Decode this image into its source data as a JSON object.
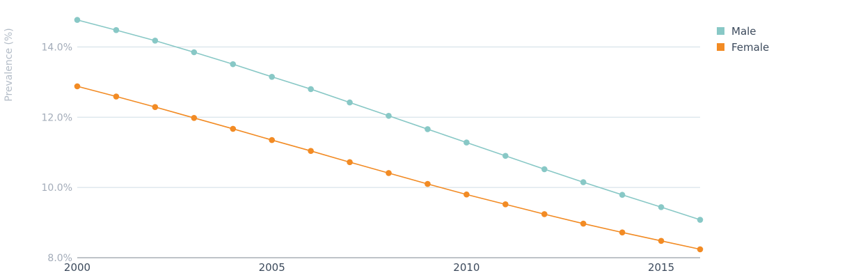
{
  "chart_data": {
    "type": "line",
    "xlabel": "",
    "ylabel": "Prevalence (%)",
    "xlim": [
      2000,
      2016
    ],
    "ylim": [
      8.0,
      15.0
    ],
    "x_ticks": [
      2000,
      2005,
      2010,
      2015
    ],
    "x_tick_labels": [
      "2000",
      "2005",
      "2010",
      "2015"
    ],
    "y_ticks": [
      8,
      10,
      12,
      14
    ],
    "y_tick_labels": [
      "8.0%",
      "10.0%",
      "12.0%",
      "14.0%"
    ],
    "grid": true,
    "legend_position": "top-right",
    "x": [
      2000,
      2001,
      2002,
      2003,
      2004,
      2005,
      2006,
      2007,
      2008,
      2009,
      2010,
      2011,
      2012,
      2013,
      2014,
      2015,
      2016
    ],
    "series": [
      {
        "name": "Male",
        "color": "#88c8c6",
        "values": [
          14.77,
          14.48,
          14.18,
          13.85,
          13.51,
          13.15,
          12.8,
          12.42,
          12.04,
          11.66,
          11.28,
          10.9,
          10.52,
          10.15,
          9.79,
          9.44,
          9.08
        ]
      },
      {
        "name": "Female",
        "color": "#f28b24",
        "values": [
          12.88,
          12.59,
          12.29,
          11.98,
          11.67,
          11.35,
          11.04,
          10.72,
          10.41,
          10.1,
          9.8,
          9.52,
          9.24,
          8.97,
          8.72,
          8.48,
          8.24
        ]
      }
    ]
  }
}
